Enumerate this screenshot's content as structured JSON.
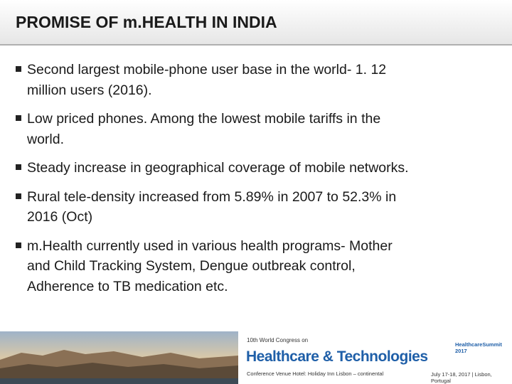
{
  "header": {
    "title": "PROMISE OF m.HEALTH IN INDIA"
  },
  "bullets": [
    [
      "Second largest mobile-phone user base in the world- 1. 12",
      "million users (2016)."
    ],
    [
      "Low priced phones. Among the lowest mobile tariffs in the",
      "world."
    ],
    [
      "Steady increase in geographical coverage of mobile networks."
    ],
    [
      "Rural tele-density increased from 5.89% in 2007 to 52.3% in",
      "2016 (Oct)"
    ],
    [
      "m.Health currently used in various health programs- Mother",
      "and Child Tracking System, Dengue outbreak control,",
      "Adherence to TB medication etc."
    ]
  ],
  "footer": {
    "congress": "10th World Congress on",
    "brand": "Healthcare & Technologies",
    "venue": "Conference Venue Hotel: Holiday Inn Lisbon – continental",
    "summit": "HealthcareSummit 2017",
    "dates": "July 17-18, 2017 | Lisbon, Portugal"
  }
}
